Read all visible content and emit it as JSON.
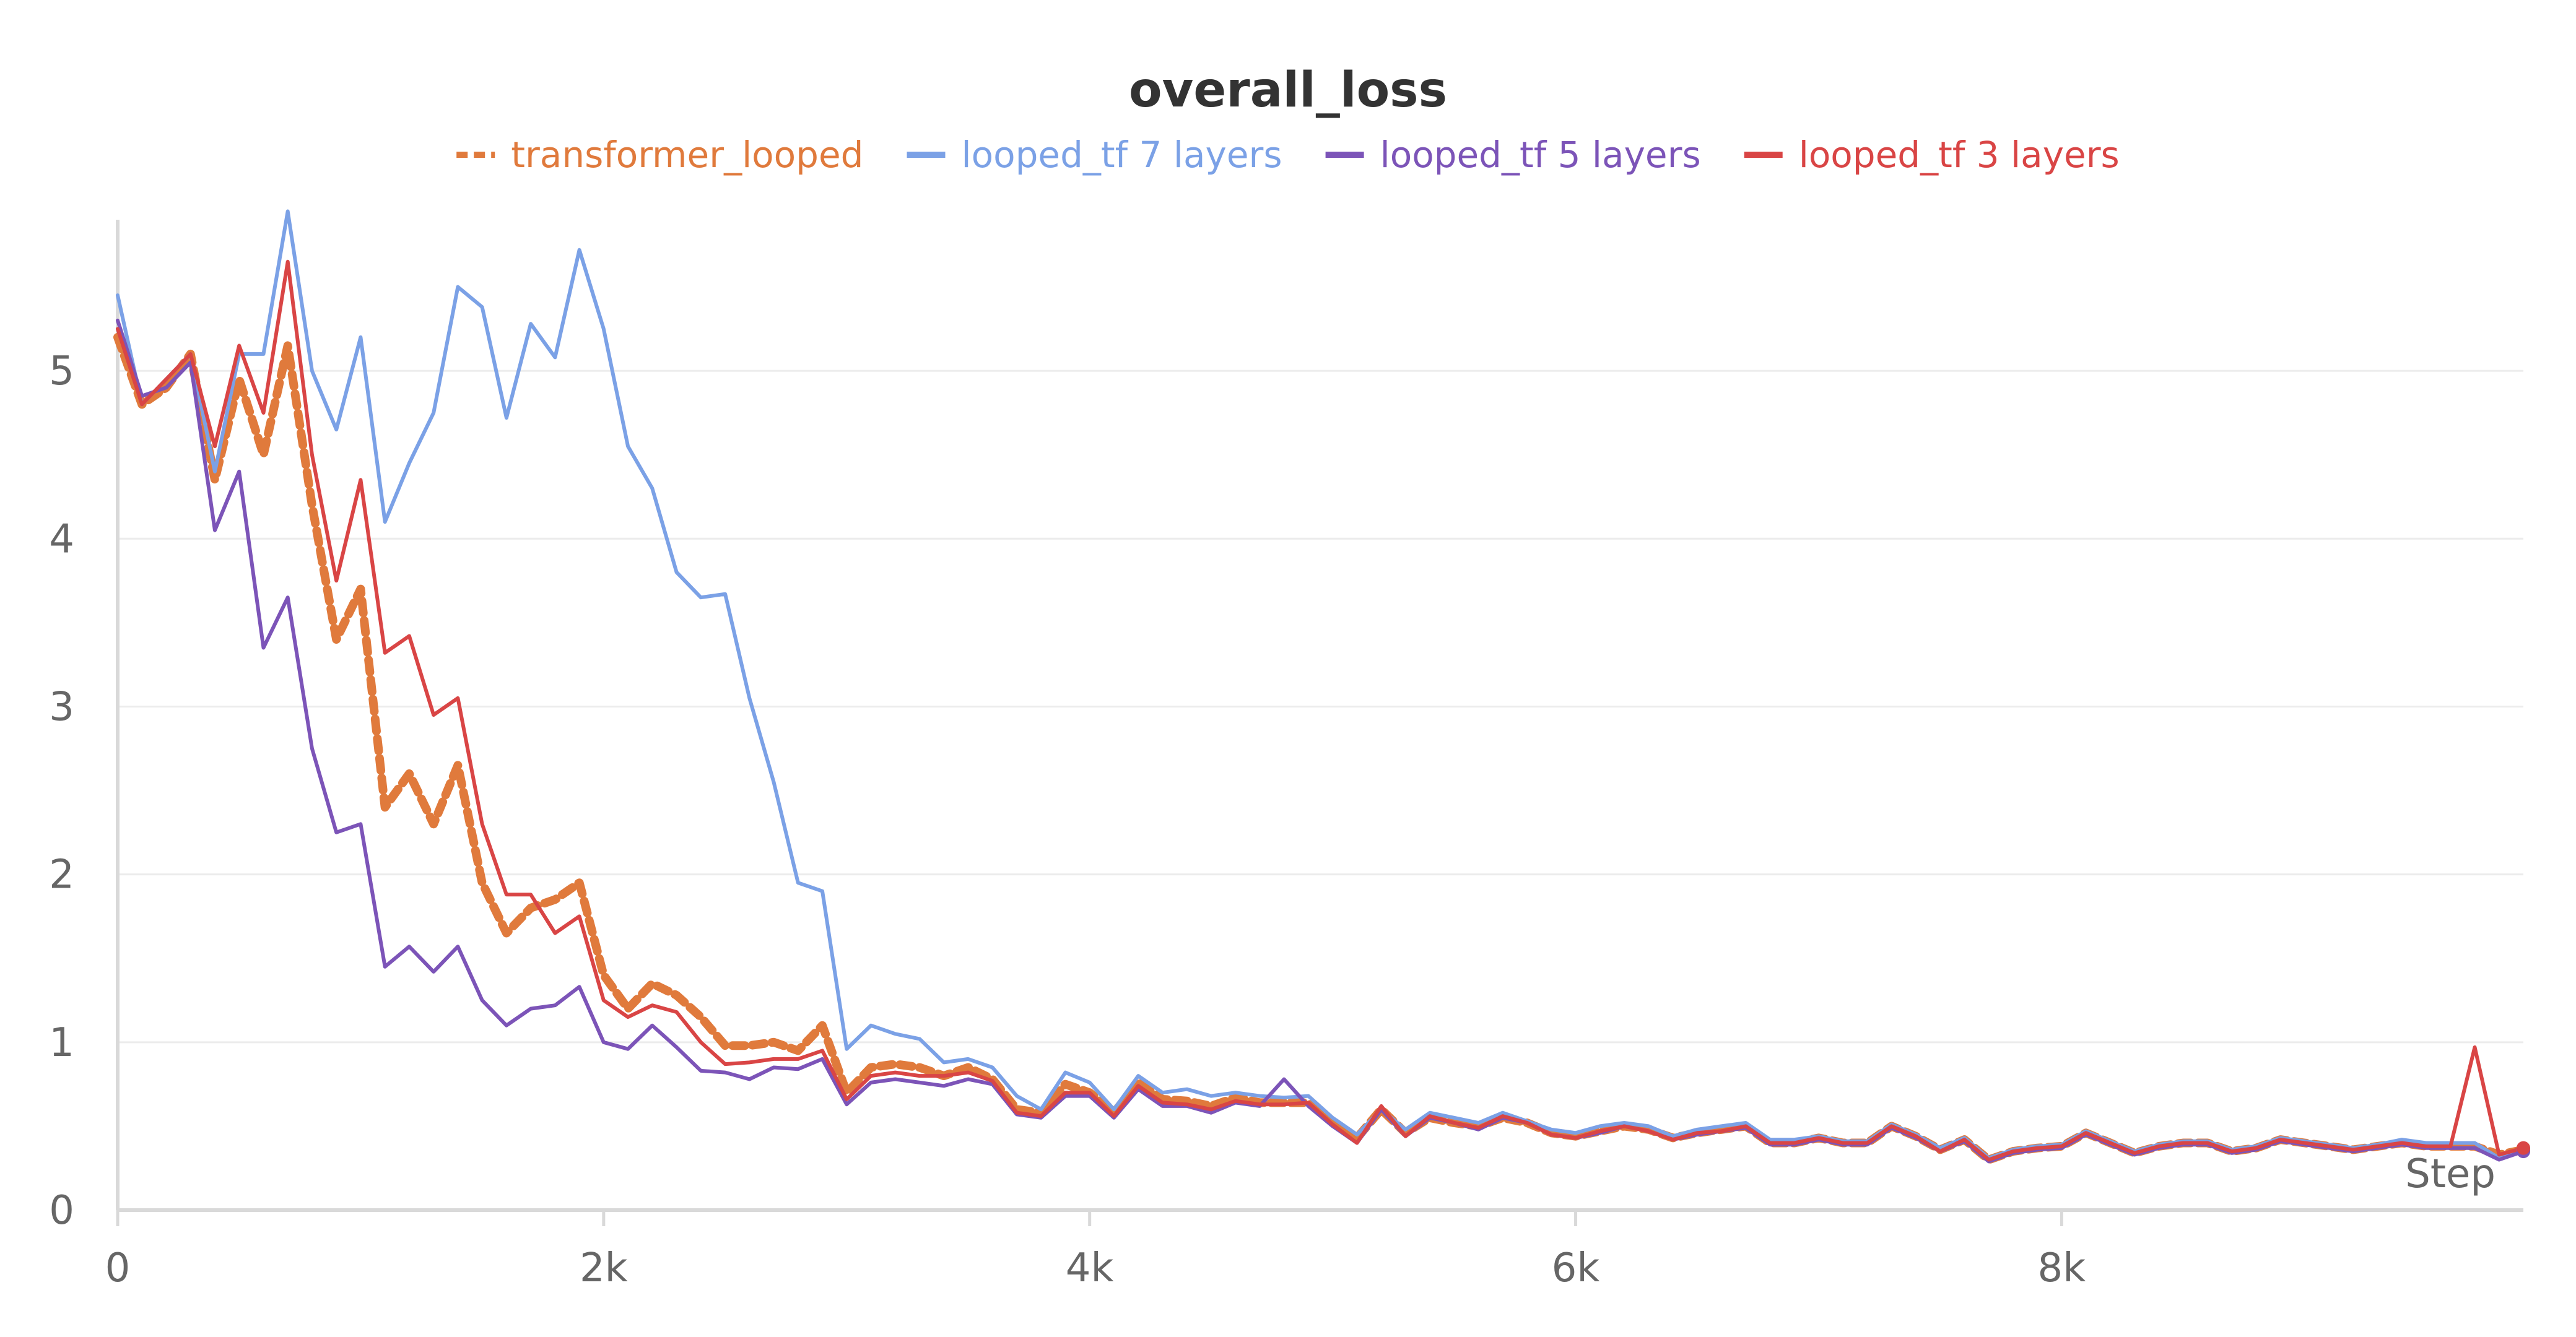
{
  "chart_data": {
    "type": "line",
    "title": "overall_loss",
    "xlabel": "Step",
    "ylabel": "",
    "xlim": [
      0,
      9900
    ],
    "ylim": [
      0,
      5.9
    ],
    "x_ticks": [
      0,
      2000,
      4000,
      6000,
      8000
    ],
    "x_tick_labels": [
      "0",
      "2k",
      "4k",
      "6k",
      "8k"
    ],
    "y_ticks": [
      0,
      1,
      2,
      3,
      4,
      5
    ],
    "y_tick_labels": [
      "0",
      "1",
      "2",
      "3",
      "4",
      "5"
    ],
    "grid": true,
    "legend_position": "top",
    "x": [
      0,
      100,
      200,
      300,
      400,
      500,
      600,
      700,
      800,
      900,
      1000,
      1100,
      1200,
      1300,
      1400,
      1500,
      1600,
      1700,
      1800,
      1900,
      2000,
      2100,
      2200,
      2300,
      2400,
      2500,
      2600,
      2700,
      2800,
      2900,
      3000,
      3100,
      3200,
      3300,
      3400,
      3500,
      3600,
      3700,
      3800,
      3900,
      4000,
      4100,
      4200,
      4300,
      4400,
      4500,
      4600,
      4700,
      4800,
      4900,
      5000,
      5100,
      5200,
      5300,
      5400,
      5500,
      5600,
      5700,
      5800,
      5900,
      6000,
      6100,
      6200,
      6300,
      6400,
      6500,
      6600,
      6700,
      6800,
      6900,
      7000,
      7100,
      7200,
      7300,
      7400,
      7500,
      7600,
      7700,
      7800,
      7900,
      8000,
      8100,
      8200,
      8300,
      8400,
      8500,
      8600,
      8700,
      8800,
      8900,
      9000,
      9100,
      9200,
      9300,
      9400,
      9500,
      9600,
      9700,
      9800,
      9900
    ],
    "series": [
      {
        "name": "transformer_looped",
        "color": "#e07a3c",
        "dash": true,
        "values": [
          5.2,
          4.8,
          4.9,
          5.1,
          4.35,
          4.95,
          4.5,
          5.15,
          4.2,
          3.4,
          3.7,
          2.4,
          2.6,
          2.3,
          2.65,
          1.95,
          1.65,
          1.8,
          1.85,
          1.95,
          1.4,
          1.2,
          1.35,
          1.28,
          1.15,
          0.98,
          0.98,
          1.0,
          0.95,
          1.1,
          0.7,
          0.85,
          0.87,
          0.85,
          0.8,
          0.85,
          0.78,
          0.6,
          0.58,
          0.75,
          0.7,
          0.58,
          0.76,
          0.66,
          0.65,
          0.62,
          0.67,
          0.64,
          0.64,
          0.64,
          0.52,
          0.43,
          0.6,
          0.46,
          0.55,
          0.52,
          0.5,
          0.55,
          0.52,
          0.46,
          0.44,
          0.47,
          0.5,
          0.48,
          0.43,
          0.46,
          0.48,
          0.5,
          0.4,
          0.4,
          0.43,
          0.4,
          0.4,
          0.5,
          0.44,
          0.36,
          0.42,
          0.3,
          0.35,
          0.37,
          0.38,
          0.46,
          0.4,
          0.34,
          0.38,
          0.4,
          0.4,
          0.35,
          0.37,
          0.42,
          0.4,
          0.38,
          0.36,
          0.38,
          0.4,
          0.38,
          0.38,
          0.38,
          0.33,
          0.36
        ]
      },
      {
        "name": "looped_tf 7 layers",
        "color": "#7ba1e6",
        "dash": false,
        "values": [
          5.45,
          4.8,
          4.95,
          5.1,
          4.4,
          5.1,
          5.1,
          5.95,
          5.0,
          4.65,
          5.2,
          4.1,
          4.45,
          4.75,
          5.5,
          5.38,
          4.72,
          5.28,
          5.08,
          5.72,
          5.25,
          4.55,
          4.3,
          3.8,
          3.65,
          3.67,
          3.05,
          2.55,
          1.95,
          1.9,
          0.96,
          1.1,
          1.05,
          1.02,
          0.88,
          0.9,
          0.85,
          0.68,
          0.6,
          0.82,
          0.76,
          0.6,
          0.8,
          0.7,
          0.72,
          0.68,
          0.7,
          0.68,
          0.67,
          0.68,
          0.55,
          0.45,
          0.6,
          0.48,
          0.58,
          0.55,
          0.52,
          0.58,
          0.53,
          0.48,
          0.46,
          0.5,
          0.52,
          0.5,
          0.44,
          0.48,
          0.5,
          0.52,
          0.42,
          0.42,
          0.44,
          0.41,
          0.41,
          0.51,
          0.45,
          0.37,
          0.43,
          0.31,
          0.36,
          0.38,
          0.39,
          0.47,
          0.41,
          0.35,
          0.39,
          0.41,
          0.41,
          0.36,
          0.38,
          0.43,
          0.41,
          0.39,
          0.37,
          0.39,
          0.42,
          0.4,
          0.4,
          0.4,
          0.31,
          0.36
        ]
      },
      {
        "name": "looped_tf 5 layers",
        "color": "#7c54b8",
        "dash": false,
        "values": [
          5.3,
          4.85,
          4.9,
          5.05,
          4.05,
          4.4,
          3.35,
          3.65,
          2.75,
          2.25,
          2.3,
          1.45,
          1.57,
          1.42,
          1.57,
          1.25,
          1.1,
          1.2,
          1.22,
          1.33,
          1.0,
          0.96,
          1.1,
          0.97,
          0.83,
          0.82,
          0.78,
          0.85,
          0.84,
          0.9,
          0.63,
          0.76,
          0.78,
          0.76,
          0.74,
          0.78,
          0.75,
          0.57,
          0.55,
          0.68,
          0.68,
          0.55,
          0.72,
          0.62,
          0.62,
          0.58,
          0.64,
          0.62,
          0.78,
          0.62,
          0.5,
          0.4,
          0.6,
          0.44,
          0.55,
          0.52,
          0.48,
          0.55,
          0.52,
          0.45,
          0.43,
          0.46,
          0.5,
          0.47,
          0.42,
          0.45,
          0.47,
          0.49,
          0.39,
          0.39,
          0.42,
          0.39,
          0.39,
          0.49,
          0.43,
          0.35,
          0.41,
          0.29,
          0.34,
          0.36,
          0.37,
          0.45,
          0.39,
          0.33,
          0.37,
          0.39,
          0.39,
          0.34,
          0.36,
          0.41,
          0.39,
          0.37,
          0.35,
          0.37,
          0.39,
          0.37,
          0.37,
          0.37,
          0.3,
          0.35
        ]
      },
      {
        "name": "looped_tf 3 layers",
        "color": "#d94545",
        "dash": false,
        "values": [
          5.25,
          4.8,
          4.95,
          5.1,
          4.55,
          5.15,
          4.75,
          5.65,
          4.5,
          3.75,
          4.35,
          3.32,
          3.42,
          2.95,
          3.05,
          2.3,
          1.88,
          1.88,
          1.65,
          1.75,
          1.25,
          1.15,
          1.22,
          1.18,
          1.0,
          0.87,
          0.88,
          0.9,
          0.9,
          0.95,
          0.66,
          0.8,
          0.82,
          0.8,
          0.8,
          0.82,
          0.77,
          0.58,
          0.56,
          0.7,
          0.7,
          0.56,
          0.74,
          0.64,
          0.63,
          0.6,
          0.65,
          0.63,
          0.63,
          0.64,
          0.51,
          0.4,
          0.62,
          0.44,
          0.56,
          0.52,
          0.49,
          0.56,
          0.52,
          0.45,
          0.43,
          0.47,
          0.5,
          0.47,
          0.42,
          0.46,
          0.47,
          0.5,
          0.4,
          0.4,
          0.43,
          0.4,
          0.4,
          0.5,
          0.44,
          0.35,
          0.42,
          0.3,
          0.35,
          0.37,
          0.38,
          0.46,
          0.4,
          0.34,
          0.38,
          0.4,
          0.4,
          0.35,
          0.37,
          0.42,
          0.4,
          0.38,
          0.36,
          0.38,
          0.4,
          0.38,
          0.38,
          0.97,
          0.33,
          0.37
        ]
      }
    ]
  }
}
